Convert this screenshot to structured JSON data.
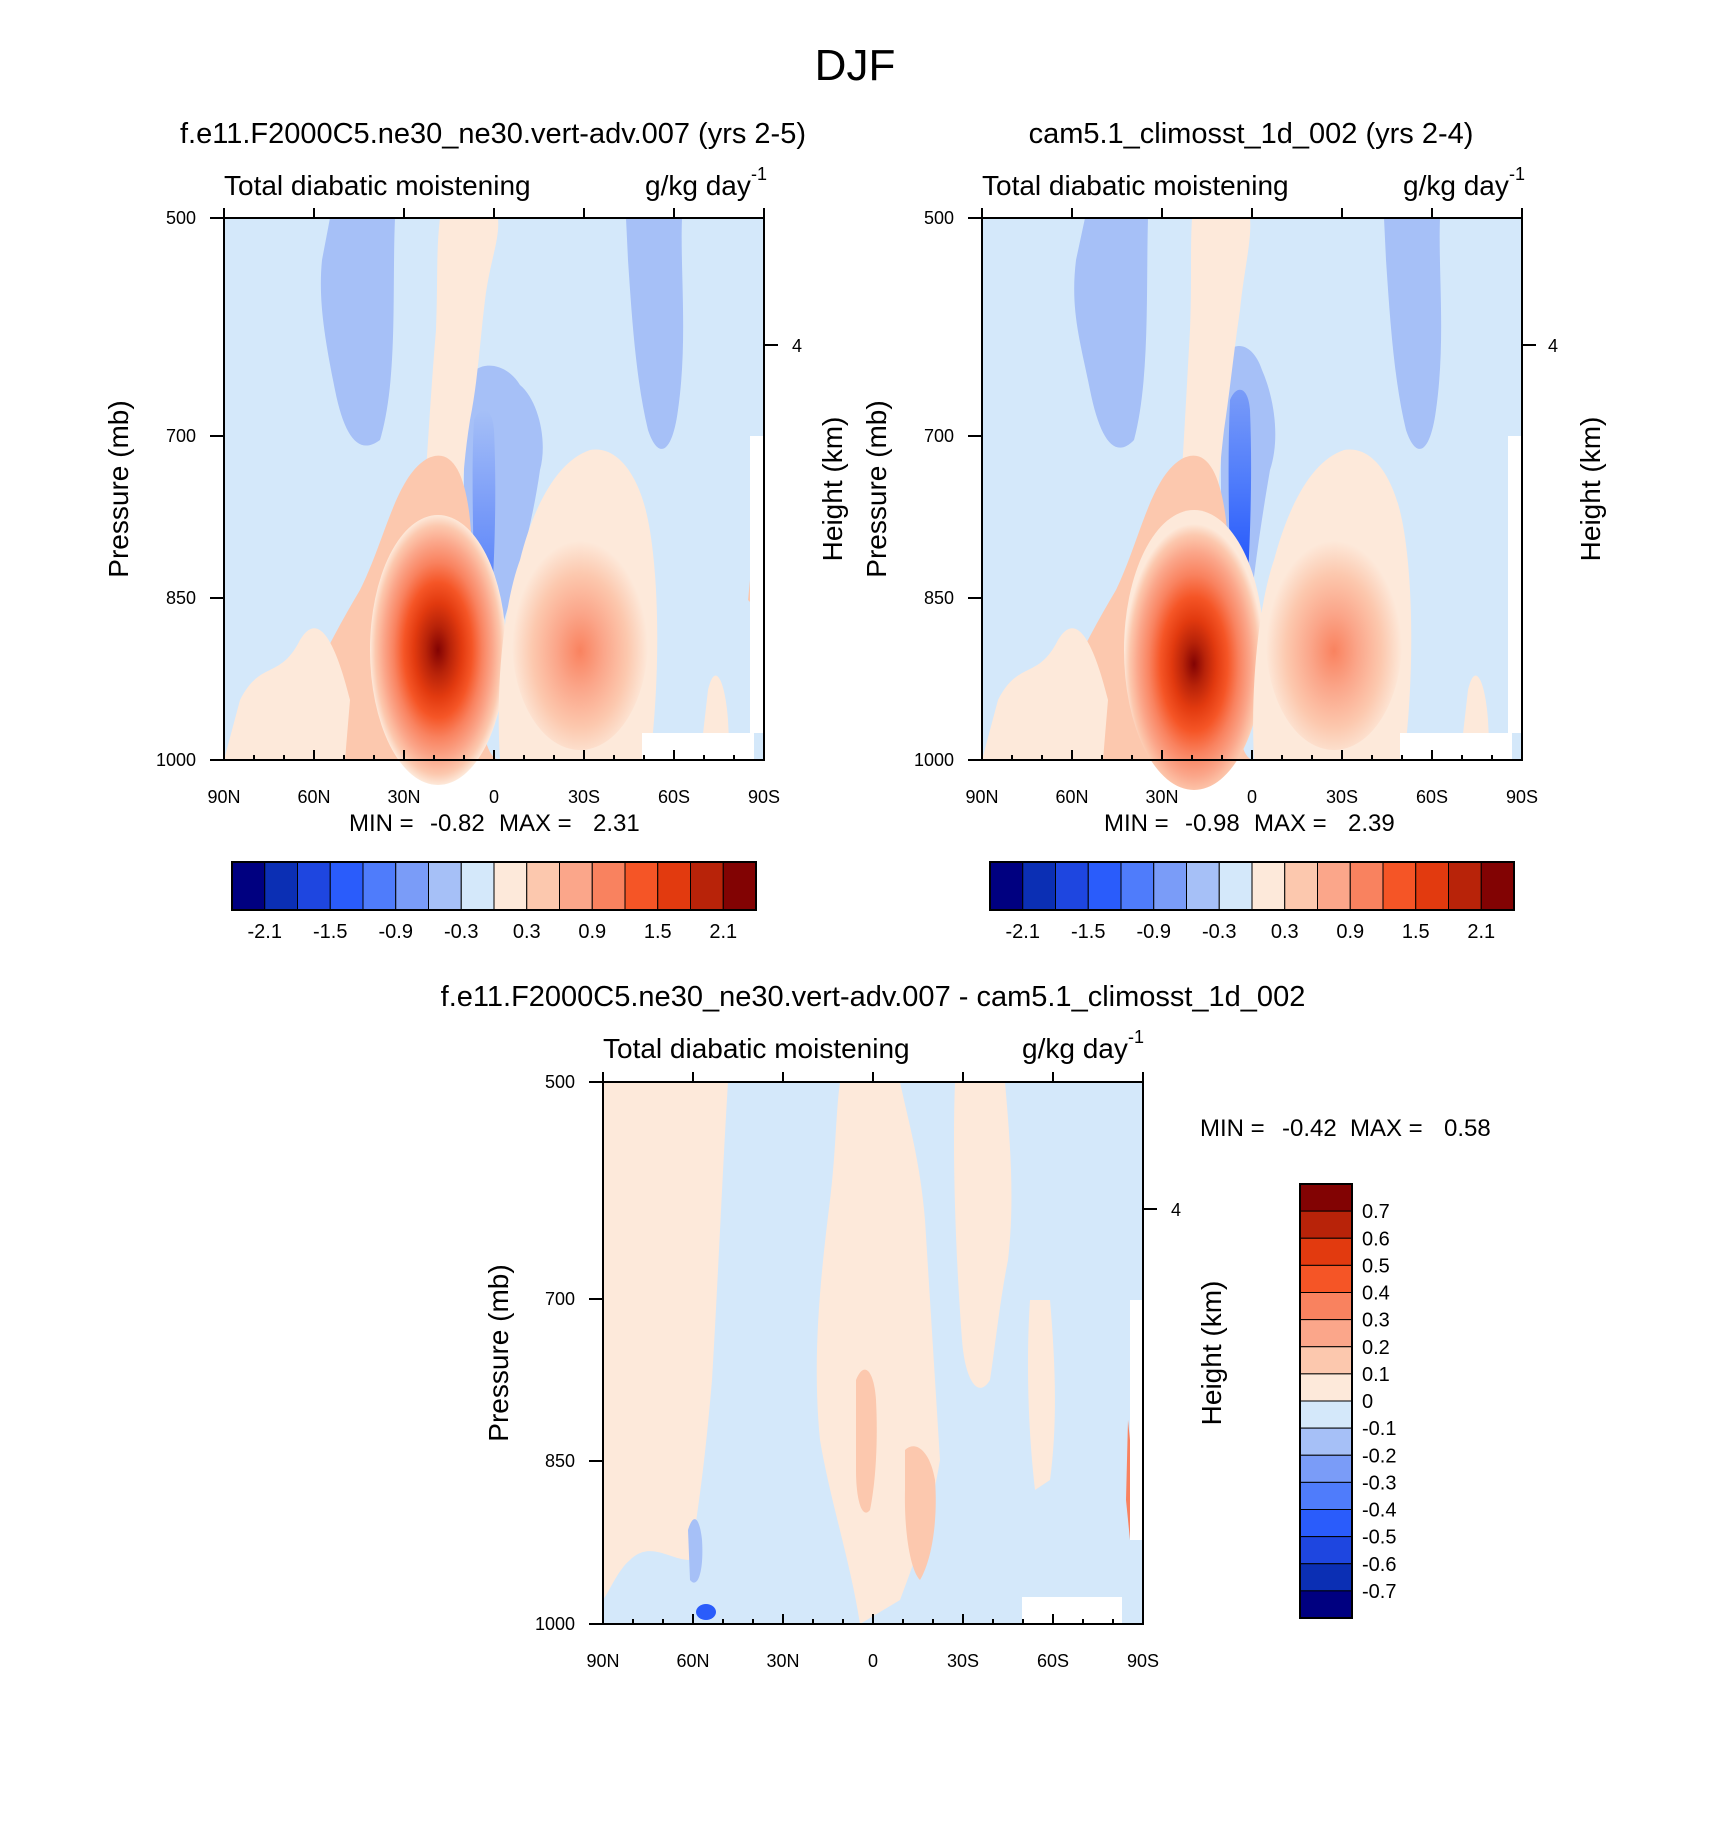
{
  "page_title": "DJF",
  "colors": {
    "diverging_16": [
      "#000080",
      "#0b2fb4",
      "#1e46e0",
      "#2a5cfb",
      "#4f7cfb",
      "#7a9cf8",
      "#a6c0f7",
      "#d4e8fa",
      "#fde9da",
      "#fcc8ae",
      "#fba68a",
      "#f9825f",
      "#f55526",
      "#e23a0f",
      "#b82309",
      "#820303"
    ],
    "diverging_14": [
      "#000080",
      "#0b2fb4",
      "#1e46e0",
      "#2a5cfb",
      "#7a9cf8",
      "#a6c0f7",
      "#d4e8fa",
      "#fde9da",
      "#fcc8ae",
      "#fba68a",
      "#f9825f",
      "#f55526",
      "#e23a0f",
      "#b82309"
    ]
  },
  "chart_data": [
    {
      "type": "heatmap",
      "id": "panel1",
      "title": "f.e11.F2000C5.ne30_ne30.vert-adv.007 (yrs 2-5)",
      "left_label": "Total diabatic moistening",
      "right_label": "g/kg day",
      "right_label_sup": "-1",
      "ylabel": "Pressure (mb)",
      "ylabel_right": "Height (km)",
      "x_ticks": [
        "90N",
        "60N",
        "30N",
        "0",
        "30S",
        "60S",
        "90S"
      ],
      "y_ticks": [
        "500",
        "700",
        "850",
        "1000"
      ],
      "y_right_ticks": [
        "4"
      ],
      "ylim": [
        1000,
        500
      ],
      "min_label": "MIN =",
      "min_value": "-0.82",
      "max_label": "MAX =",
      "max_value": "2.31",
      "levels": [
        -2.1,
        -1.8,
        -1.5,
        -1.2,
        -0.9,
        -0.6,
        -0.3,
        0,
        0.3,
        0.6,
        0.9,
        1.2,
        1.5,
        1.8,
        2.1
      ],
      "colorbar_labels": [
        "-2.1",
        "-1.5",
        "-0.9",
        "-0.3",
        "0.3",
        "0.9",
        "1.5",
        "2.1"
      ]
    },
    {
      "type": "heatmap",
      "id": "panel2",
      "title": "cam5.1_climosst_1d_002 (yrs 2-4)",
      "left_label": "Total diabatic moistening",
      "right_label": "g/kg day",
      "right_label_sup": "-1",
      "ylabel": "Pressure (mb)",
      "ylabel_right": "Height (km)",
      "x_ticks": [
        "90N",
        "60N",
        "30N",
        "0",
        "30S",
        "60S",
        "90S"
      ],
      "y_ticks": [
        "500",
        "700",
        "850",
        "1000"
      ],
      "y_right_ticks": [
        "4"
      ],
      "ylim": [
        1000,
        500
      ],
      "min_label": "MIN =",
      "min_value": "-0.98",
      "max_label": "MAX =",
      "max_value": "2.39",
      "levels": [
        -2.1,
        -1.8,
        -1.5,
        -1.2,
        -0.9,
        -0.6,
        -0.3,
        0,
        0.3,
        0.6,
        0.9,
        1.2,
        1.5,
        1.8,
        2.1
      ],
      "colorbar_labels": [
        "-2.1",
        "-1.5",
        "-0.9",
        "-0.3",
        "0.3",
        "0.9",
        "1.5",
        "2.1"
      ]
    },
    {
      "type": "heatmap",
      "id": "panel3",
      "title": "f.e11.F2000C5.ne30_ne30.vert-adv.007 - cam5.1_climosst_1d_002",
      "left_label": "Total diabatic moistening",
      "right_label": "g/kg day",
      "right_label_sup": "-1",
      "ylabel": "Pressure (mb)",
      "ylabel_right": "Height (km)",
      "x_ticks": [
        "90N",
        "60N",
        "30N",
        "0",
        "30S",
        "60S",
        "90S"
      ],
      "y_ticks": [
        "500",
        "700",
        "850",
        "1000"
      ],
      "y_right_ticks": [
        "4"
      ],
      "ylim": [
        1000,
        500
      ],
      "min_label": "MIN =",
      "min_value": "-0.42",
      "max_label": "MAX =",
      "max_value": "0.58",
      "levels": [
        -0.7,
        -0.6,
        -0.5,
        -0.4,
        -0.3,
        -0.2,
        -0.1,
        0,
        0.1,
        0.2,
        0.3,
        0.4,
        0.5,
        0.6,
        0.7
      ],
      "colorbar_labels": [
        "0.7",
        "0.6",
        "0.5",
        "0.4",
        "0.3",
        "0.2",
        "0.1",
        "0",
        "-0.1",
        "-0.2",
        "-0.3",
        "-0.4",
        "-0.5",
        "-0.6",
        "-0.7"
      ]
    }
  ]
}
